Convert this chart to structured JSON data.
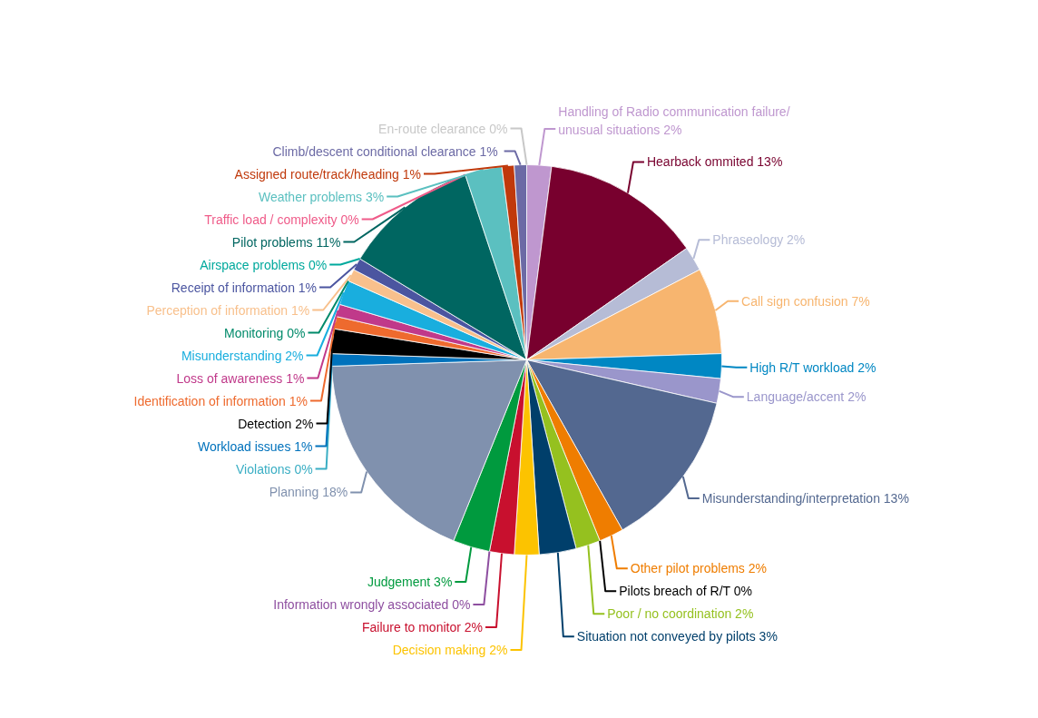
{
  "chart_data": {
    "type": "pie",
    "categories": [
      "Handling of Radio communication failure/\nunusual situations",
      "Hearback ommited",
      "Phraseology",
      "Call sign confusion",
      "High R/T workload",
      "Language/accent",
      "Misunderstanding/interpretation",
      "Other pilot problems",
      "Pilots breach of R/T",
      "Poor / no coordination",
      "Situation not conveyed by pilots",
      "Decision making",
      "Failure to monitor",
      "Information wrongly associated",
      "Judgement",
      "Planning",
      "Violations",
      "Workload issues",
      "Detection",
      "Identification of information",
      "Loss of awareness",
      "Misunderstanding",
      "Monitoring",
      "Perception of information",
      "Receipt of information",
      "Airspace problems",
      "Pilot problems",
      "Traffic load / complexity",
      "Weather problems",
      "Assigned route/track/heading",
      "Climb/descent conditional  clearance",
      "En-route clearance"
    ],
    "values": [
      2,
      13,
      2,
      7,
      2,
      2,
      13,
      2,
      0,
      2,
      3,
      2,
      2,
      0,
      3,
      18,
      0,
      1,
      2,
      1,
      1,
      2,
      0,
      1,
      1,
      0,
      11,
      0,
      3,
      1,
      1,
      0
    ],
    "value_labels": [
      "2%",
      "13%",
      "2%",
      "7%",
      "2%",
      "2%",
      "13%",
      "2%",
      "0%",
      "2%",
      "3%",
      "2%",
      "2%",
      "0%",
      "3%",
      "18%",
      "0%",
      "1%",
      "2%",
      "1%",
      "1%",
      "2%",
      "0%",
      "1%",
      "1%",
      "0%",
      "11%",
      "0%",
      "3%",
      "1%",
      "1%",
      "0%"
    ],
    "colors": [
      "#bf97cf",
      "#78002e",
      "#b6bcd6",
      "#f7b56f",
      "#0087c3",
      "#9a96cb",
      "#536890",
      "#ef7d00",
      "#000000",
      "#95c11f",
      "#003f6b",
      "#fcc300",
      "#c8102e",
      "#8e4fa0",
      "#009a3e",
      "#8091ae",
      "#3aaec4",
      "#0072bc",
      "#000000",
      "#ee6a2e",
      "#c0398a",
      "#19aede",
      "#008a6a",
      "#f8c08c",
      "#4b55a0",
      "#00a99d",
      "#006661",
      "#ef5b89",
      "#5bc0c0",
      "#c0390b",
      "#6c6aa5",
      "#c8c8c8"
    ]
  }
}
